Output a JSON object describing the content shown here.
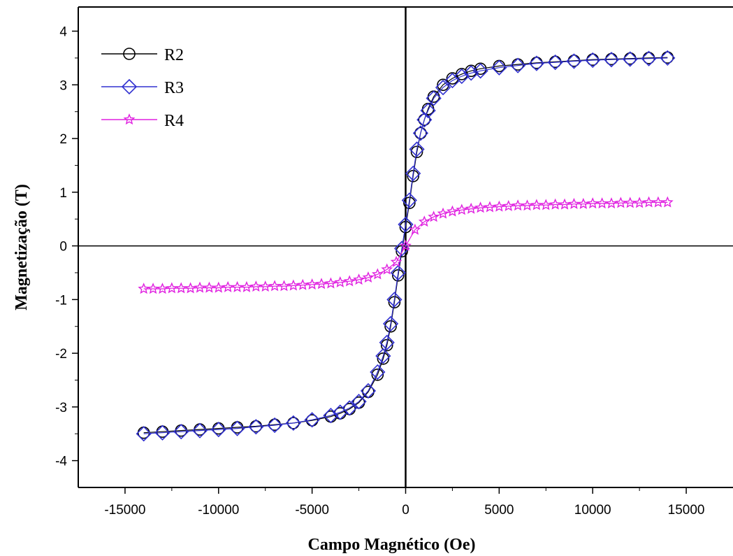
{
  "chart_data": {
    "type": "scatter",
    "title": "",
    "xlabel": "Campo Magnético (Oe)",
    "ylabel": "Magnetização (T)",
    "xlim": [
      -17500,
      17500
    ],
    "ylim": [
      -4.5,
      4.45
    ],
    "xticks": [
      -15000,
      -10000,
      -5000,
      0,
      5000,
      10000,
      15000
    ],
    "xtick_labels": [
      "-15000",
      "-10000",
      "-5000",
      "0",
      "5000",
      "10000",
      "15000"
    ],
    "yticks": [
      -4,
      -3,
      -2,
      -1,
      0,
      1,
      2,
      3,
      4
    ],
    "ytick_labels": [
      "-4",
      "-3",
      "-2",
      "-1",
      "0",
      "1",
      "2",
      "3",
      "4"
    ],
    "zero_lines": true,
    "grid": false,
    "legend_position": "top-left",
    "series": [
      {
        "name": "R2",
        "color": "#000000",
        "marker": "circle",
        "x": [
          -14000,
          -13000,
          -12000,
          -11000,
          -10000,
          -9000,
          -8000,
          -7000,
          -6000,
          -5000,
          -4000,
          -3500,
          -3000,
          -2500,
          -2000,
          -1500,
          -1200,
          -1000,
          -800,
          -600,
          -400,
          -200,
          0,
          200,
          400,
          600,
          800,
          1000,
          1200,
          1500,
          2000,
          2500,
          3000,
          3500,
          4000,
          5000,
          6000,
          7000,
          8000,
          9000,
          10000,
          11000,
          12000,
          13000,
          14000
        ],
        "y": [
          -3.48,
          -3.46,
          -3.44,
          -3.42,
          -3.4,
          -3.38,
          -3.36,
          -3.33,
          -3.3,
          -3.25,
          -3.18,
          -3.12,
          -3.04,
          -2.92,
          -2.72,
          -2.4,
          -2.1,
          -1.85,
          -1.5,
          -1.05,
          -0.55,
          -0.1,
          0.35,
          0.8,
          1.3,
          1.75,
          2.1,
          2.35,
          2.55,
          2.78,
          3.0,
          3.12,
          3.2,
          3.26,
          3.3,
          3.35,
          3.38,
          3.41,
          3.43,
          3.45,
          3.47,
          3.48,
          3.49,
          3.5,
          3.51
        ]
      },
      {
        "name": "R3",
        "color": "#3030d0",
        "marker": "diamond",
        "x": [
          -14000,
          -13000,
          -12000,
          -11000,
          -10000,
          -9000,
          -8000,
          -7000,
          -6000,
          -5000,
          -4000,
          -3500,
          -3000,
          -2500,
          -2000,
          -1500,
          -1200,
          -1000,
          -800,
          -600,
          -400,
          -200,
          0,
          200,
          400,
          600,
          800,
          1000,
          1200,
          1500,
          2000,
          2500,
          3000,
          3500,
          4000,
          5000,
          6000,
          7000,
          8000,
          9000,
          10000,
          11000,
          12000,
          13000,
          14000
        ],
        "y": [
          -3.5,
          -3.48,
          -3.46,
          -3.44,
          -3.42,
          -3.4,
          -3.37,
          -3.34,
          -3.3,
          -3.24,
          -3.16,
          -3.1,
          -3.02,
          -2.9,
          -2.7,
          -2.35,
          -2.05,
          -1.8,
          -1.45,
          -1.0,
          -0.5,
          -0.05,
          0.4,
          0.85,
          1.35,
          1.8,
          2.1,
          2.35,
          2.52,
          2.75,
          2.95,
          3.08,
          3.16,
          3.22,
          3.26,
          3.32,
          3.36,
          3.4,
          3.42,
          3.44,
          3.46,
          3.47,
          3.48,
          3.49,
          3.5
        ]
      },
      {
        "name": "R4",
        "color": "#e020e0",
        "marker": "star",
        "x": [
          -14000,
          -13500,
          -13000,
          -12500,
          -12000,
          -11500,
          -11000,
          -10500,
          -10000,
          -9500,
          -9000,
          -8500,
          -8000,
          -7500,
          -7000,
          -6500,
          -6000,
          -5500,
          -5000,
          -4500,
          -4000,
          -3500,
          -3000,
          -2500,
          -2000,
          -1500,
          -1000,
          -500,
          0,
          500,
          1000,
          1500,
          2000,
          2500,
          3000,
          3500,
          4000,
          4500,
          5000,
          5500,
          6000,
          6500,
          7000,
          7500,
          8000,
          8500,
          9000,
          9500,
          10000,
          10500,
          11000,
          11500,
          12000,
          12500,
          13000,
          13500,
          14000
        ],
        "y": [
          -0.8,
          -0.8,
          -0.8,
          -0.79,
          -0.79,
          -0.79,
          -0.78,
          -0.78,
          -0.78,
          -0.77,
          -0.77,
          -0.77,
          -0.76,
          -0.76,
          -0.75,
          -0.75,
          -0.74,
          -0.73,
          -0.72,
          -0.71,
          -0.7,
          -0.68,
          -0.66,
          -0.63,
          -0.59,
          -0.53,
          -0.44,
          -0.3,
          0.0,
          0.3,
          0.45,
          0.54,
          0.6,
          0.64,
          0.67,
          0.69,
          0.71,
          0.72,
          0.73,
          0.74,
          0.75,
          0.75,
          0.76,
          0.76,
          0.77,
          0.77,
          0.78,
          0.78,
          0.79,
          0.79,
          0.79,
          0.8,
          0.8,
          0.8,
          0.81,
          0.81,
          0.81
        ]
      }
    ]
  }
}
